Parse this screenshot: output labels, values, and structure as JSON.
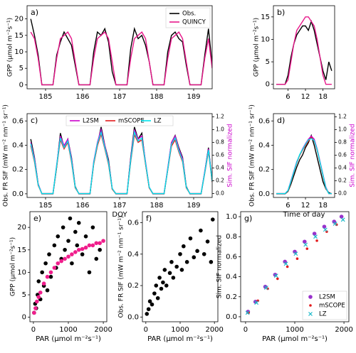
{
  "chart_data": [
    {
      "type": "line",
      "label": "a)",
      "ylabel": "GPP (µmol m⁻²s⁻¹)",
      "x": [
        184.6,
        184.7,
        184.8,
        184.9,
        185.0,
        185.1,
        185.2,
        185.3,
        185.4,
        185.5,
        185.6,
        185.7,
        185.8,
        185.9,
        186.0,
        186.1,
        186.2,
        186.3,
        186.4,
        186.5,
        186.6,
        186.7,
        186.8,
        186.9,
        187.0,
        187.1,
        187.2,
        187.3,
        187.4,
        187.5,
        187.6,
        187.7,
        187.8,
        187.9,
        188.0,
        188.1,
        188.2,
        188.3,
        188.4,
        188.5,
        188.6,
        188.7,
        188.8,
        188.9,
        189.0,
        189.1,
        189.2,
        189.3,
        189.4,
        189.5
      ],
      "series": [
        {
          "name": "Obs.",
          "color": "#000000",
          "values": [
            20,
            15,
            9,
            0,
            0,
            0,
            0,
            9,
            13,
            16,
            14,
            12,
            6,
            0,
            0,
            0,
            0,
            10,
            16,
            15,
            17,
            13,
            4,
            0,
            0,
            0,
            0,
            11,
            17,
            14,
            15,
            12,
            7,
            0,
            0,
            0,
            0,
            10,
            15,
            16,
            14,
            13,
            6,
            0,
            0,
            0,
            0,
            9,
            17,
            6
          ]
        },
        {
          "name": "QUINCY",
          "color": "#e8178a",
          "values": [
            16,
            14,
            8,
            0,
            0,
            0,
            0,
            8,
            14,
            15,
            16,
            14,
            7,
            0,
            0,
            0,
            0,
            8,
            14,
            15,
            16,
            14,
            7,
            0,
            0,
            0,
            0,
            8,
            14,
            15,
            16,
            14,
            7,
            0,
            0,
            0,
            0,
            8,
            14,
            15,
            16,
            14,
            7,
            0,
            0,
            0,
            0,
            8,
            14,
            5
          ]
        }
      ],
      "xlim": [
        184.5,
        189.5
      ],
      "xticks": [
        185,
        186,
        187,
        188,
        189
      ],
      "ylim": [
        -1.2,
        24
      ],
      "yticks": [
        0,
        5,
        10,
        15,
        20
      ],
      "legend": "upper right"
    },
    {
      "type": "line",
      "label": "b)",
      "ylabel": "GPP (µmol m⁻²s⁻¹)",
      "x": [
        2,
        3,
        4,
        5,
        6,
        7,
        8,
        9,
        10,
        11,
        12,
        13,
        14,
        15,
        16,
        17,
        18,
        19,
        20,
        21
      ],
      "series": [
        {
          "color": "#000000",
          "values": [
            0,
            0,
            0,
            0,
            2,
            6,
            9,
            11,
            12,
            13,
            13,
            12,
            14,
            12,
            9,
            6,
            3,
            1,
            5,
            3
          ]
        },
        {
          "color": "#e8178a",
          "values": [
            0,
            0,
            0,
            0,
            1,
            5,
            9,
            12,
            13,
            14,
            15,
            15,
            14,
            13,
            10,
            6,
            2,
            0,
            0,
            0
          ]
        }
      ],
      "xlim": [
        1,
        22
      ],
      "xticks": [
        6,
        12,
        18
      ],
      "ylim": [
        -1,
        17.5
      ],
      "yticks": [
        0,
        5,
        10,
        15
      ]
    },
    {
      "type": "line",
      "label": "c)",
      "ylabel": "Obs. FR SIF (mW m⁻² nm⁻¹ sr⁻¹)",
      "xlabel": "DOY",
      "y2label": "Sim. SIF normalized",
      "y2label_color": "#cc00cc",
      "x": [
        184.6,
        184.7,
        184.8,
        184.9,
        185.0,
        185.1,
        185.2,
        185.3,
        185.4,
        185.5,
        185.6,
        185.7,
        185.8,
        185.9,
        186.0,
        186.1,
        186.2,
        186.3,
        186.4,
        186.5,
        186.6,
        186.7,
        186.8,
        186.9,
        187.0,
        187.1,
        187.2,
        187.3,
        187.4,
        187.5,
        187.6,
        187.7,
        187.8,
        187.9,
        188.0,
        188.1,
        188.2,
        188.3,
        188.4,
        188.5,
        188.6,
        188.7,
        188.8,
        188.9,
        189.0,
        189.1,
        189.2,
        189.3,
        189.4,
        189.5
      ],
      "series": [
        {
          "color": "#000000",
          "values": [
            0.45,
            0.3,
            0.08,
            0,
            0,
            0,
            0,
            0.22,
            0.5,
            0.38,
            0.45,
            0.3,
            0.06,
            0,
            0,
            0,
            0,
            0.25,
            0.4,
            0.55,
            0.4,
            0.28,
            0.04,
            0,
            0,
            0,
            0,
            0.3,
            0.55,
            0.45,
            0.5,
            0.25,
            0.05,
            0,
            0,
            0,
            0,
            0.2,
            0.42,
            0.48,
            0.38,
            0.3,
            0.06,
            0,
            0,
            0,
            0,
            0.18,
            0.38,
            0.1
          ]
        },
        {
          "name": "L2SM",
          "color": "#cc00cc",
          "axis": "y2",
          "values": [
            0.8,
            0.55,
            0.15,
            0,
            0,
            0,
            0,
            0.45,
            0.9,
            0.75,
            0.85,
            0.55,
            0.1,
            0,
            0,
            0,
            0,
            0.5,
            0.8,
            1.0,
            0.75,
            0.5,
            0.08,
            0,
            0,
            0,
            0,
            0.55,
            1.0,
            0.85,
            0.9,
            0.5,
            0.1,
            0,
            0,
            0,
            0,
            0.4,
            0.8,
            0.9,
            0.7,
            0.55,
            0.1,
            0,
            0,
            0,
            0,
            0.35,
            0.7,
            0.2
          ]
        },
        {
          "name": "mSCOPE",
          "color": "#e31a1c",
          "axis": "y2",
          "values": [
            0.75,
            0.5,
            0.13,
            0,
            0,
            0,
            0,
            0.42,
            0.84,
            0.7,
            0.8,
            0.5,
            0.09,
            0,
            0,
            0,
            0,
            0.46,
            0.75,
            0.93,
            0.7,
            0.46,
            0.07,
            0,
            0,
            0,
            0,
            0.5,
            0.92,
            0.8,
            0.84,
            0.46,
            0.09,
            0,
            0,
            0,
            0,
            0.37,
            0.74,
            0.84,
            0.65,
            0.5,
            0.09,
            0,
            0,
            0,
            0,
            0.32,
            0.66,
            0.18
          ]
        },
        {
          "name": "LZ",
          "color": "#00e5ee",
          "axis": "y2",
          "values": [
            0.78,
            0.52,
            0.14,
            0,
            0,
            0,
            0,
            0.44,
            0.87,
            0.72,
            0.82,
            0.52,
            0.1,
            0,
            0,
            0,
            0,
            0.48,
            0.78,
            0.96,
            0.72,
            0.48,
            0.08,
            0,
            0,
            0,
            0,
            0.52,
            0.96,
            0.82,
            0.87,
            0.48,
            0.1,
            0,
            0,
            0,
            0,
            0.38,
            0.77,
            0.87,
            0.67,
            0.52,
            0.1,
            0,
            0,
            0,
            0,
            0.33,
            0.68,
            0.19
          ]
        }
      ],
      "xlim": [
        184.5,
        189.5
      ],
      "xticks": [
        185,
        186,
        187,
        188,
        189
      ],
      "ylim": [
        -0.03,
        0.66
      ],
      "yticks": [
        {
          "value": 0,
          "label": "0.0"
        },
        0.2,
        0.4,
        0.6
      ],
      "y2lim": [
        -0.06,
        1.25
      ],
      "y2ticks": [
        {
          "value": 0,
          "label": "0.0"
        },
        0.2,
        0.4,
        0.6,
        0.8,
        {
          "value": 1,
          "label": "1.0"
        },
        1.2
      ],
      "legend": "upper center"
    },
    {
      "type": "line",
      "label": "d)",
      "ylabel": "Obs. FR SIF (mW m⁻² nm⁻¹ sr⁻¹)",
      "xlabel": "Time of day",
      "y2label": "Sim. SIF normalized",
      "y2label_color": "#cc00cc",
      "x": [
        2,
        3,
        4,
        5,
        6,
        7,
        8,
        9,
        10,
        11,
        12,
        13,
        14,
        15,
        16,
        17,
        18,
        19,
        20,
        21
      ],
      "series": [
        {
          "color": "#000000",
          "values": [
            0,
            0,
            0,
            0,
            0.02,
            0.08,
            0.15,
            0.22,
            0.28,
            0.32,
            0.38,
            0.42,
            0.48,
            0.4,
            0.3,
            0.2,
            0.1,
            0.04,
            0.01,
            0
          ]
        },
        {
          "color": "#cc00cc",
          "axis": "y2",
          "values": [
            0,
            0,
            0,
            0,
            0.05,
            0.2,
            0.35,
            0.5,
            0.6,
            0.7,
            0.78,
            0.85,
            0.9,
            0.85,
            0.7,
            0.5,
            0.3,
            0.1,
            0,
            0
          ]
        },
        {
          "color": "#e31a1c",
          "axis": "y2",
          "values": [
            0,
            0,
            0,
            0,
            0.04,
            0.18,
            0.33,
            0.48,
            0.6,
            0.68,
            0.75,
            0.82,
            0.88,
            0.82,
            0.68,
            0.48,
            0.28,
            0.08,
            0,
            0
          ]
        },
        {
          "color": "#00e5ee",
          "axis": "y2",
          "values": [
            0,
            0,
            0,
            0,
            0.05,
            0.19,
            0.34,
            0.49,
            0.61,
            0.69,
            0.77,
            0.84,
            0.86,
            0.83,
            0.69,
            0.49,
            0.29,
            0.09,
            0,
            0
          ]
        }
      ],
      "xlim": [
        1,
        22
      ],
      "xticks": [
        6,
        12,
        18
      ],
      "ylim": [
        -0.03,
        0.66
      ],
      "yticks": [
        {
          "value": 0,
          "label": "0.0"
        },
        0.2,
        0.4,
        0.6
      ],
      "y2lim": [
        -0.06,
        1.25
      ],
      "y2ticks": [
        {
          "value": 0,
          "label": "0.0"
        },
        0.2,
        0.4,
        0.6,
        0.8,
        {
          "value": 1,
          "label": "1.0"
        },
        1.2
      ]
    },
    {
      "type": "scatter",
      "label": "e)",
      "ylabel": "GPP (µmol m⁻²s⁻¹)",
      "xlabel": "PAR (µmol m⁻²s⁻¹)",
      "series": [
        {
          "color": "#000000",
          "marker": "circle",
          "x": [
            20,
            50,
            80,
            120,
            150,
            200,
            250,
            300,
            350,
            400,
            450,
            500,
            600,
            650,
            700,
            800,
            850,
            900,
            1000,
            1050,
            1100,
            1200,
            1250,
            1300,
            1400,
            1500,
            1600,
            1700,
            1800,
            1900
          ],
          "values": [
            1,
            3,
            2,
            5,
            8,
            4,
            10,
            7,
            12,
            6,
            14,
            9,
            16,
            11,
            18,
            13,
            20,
            15,
            17,
            22,
            12,
            19,
            16,
            21,
            14,
            18,
            10,
            20,
            13,
            15
          ]
        },
        {
          "color": "#f01e8c",
          "marker": "circle",
          "x": [
            20,
            60,
            100,
            150,
            200,
            300,
            400,
            500,
            600,
            700,
            800,
            900,
            1000,
            1100,
            1200,
            1300,
            1400,
            1500,
            1600,
            1700,
            1800,
            1900,
            2000
          ],
          "values": [
            1,
            2,
            3.5,
            4.5,
            5.5,
            7.5,
            9,
            10,
            11,
            12,
            12.5,
            13,
            13.5,
            14,
            14.5,
            15,
            15.2,
            15.5,
            16,
            16,
            16.5,
            16.5,
            17
          ]
        }
      ],
      "xlim": [
        -100,
        2100
      ],
      "xticks": [
        0,
        1000,
        2000
      ],
      "ylim": [
        -1,
        23.5
      ],
      "yticks": [
        0,
        5,
        10,
        15,
        20
      ]
    },
    {
      "type": "scatter",
      "label": "f)",
      "ylabel": "Obs. FR SIF (mW m⁻² nm⁻¹ sr⁻¹)",
      "xlabel": "PAR (µmol m⁻²s⁻¹)",
      "series": [
        {
          "color": "#000000",
          "marker": "circle",
          "x": [
            30,
            80,
            120,
            180,
            250,
            300,
            350,
            400,
            450,
            500,
            550,
            600,
            700,
            750,
            800,
            900,
            1000,
            1050,
            1100,
            1200,
            1300,
            1400,
            1500,
            1600,
            1700,
            1800,
            1900,
            1950
          ],
          "values": [
            0.02,
            0.05,
            0.1,
            0.08,
            0.15,
            0.2,
            0.12,
            0.25,
            0.18,
            0.22,
            0.3,
            0.2,
            0.28,
            0.35,
            0.25,
            0.32,
            0.4,
            0.3,
            0.45,
            0.35,
            0.5,
            0.38,
            0.42,
            0.55,
            0.4,
            0.48,
            0.35,
            0.62
          ]
        }
      ],
      "xlim": [
        -100,
        2100
      ],
      "xticks": [
        0,
        1000,
        2000
      ],
      "ylim": [
        -0.03,
        0.67
      ],
      "yticks": [
        {
          "value": 0,
          "label": "0.0"
        },
        0.2,
        0.4,
        0.6
      ]
    },
    {
      "type": "scatter",
      "label": "g)",
      "ylabel": "Sim. SIF normalized",
      "xlabel": "PAR (µmol m⁻²s⁻¹)",
      "series": [
        {
          "name": "L2SM",
          "color": "#9932cc",
          "marker": "circle",
          "x": [
            50,
            200,
            400,
            600,
            800,
            1000,
            1200,
            1400,
            1600,
            1800,
            1950
          ],
          "values": [
            0.05,
            0.15,
            0.3,
            0.42,
            0.55,
            0.65,
            0.75,
            0.83,
            0.9,
            0.95,
            1.0
          ]
        },
        {
          "name": "mSCOPE",
          "color": "#e31a1c",
          "marker": "dot",
          "x": [
            60,
            250,
            450,
            650,
            850,
            1050,
            1250,
            1450,
            1650,
            1850
          ],
          "values": [
            0.04,
            0.16,
            0.28,
            0.38,
            0.5,
            0.58,
            0.68,
            0.76,
            0.85,
            0.92
          ]
        },
        {
          "name": "LZ",
          "color": "#17b8c8",
          "marker": "x",
          "x": [
            40,
            220,
            420,
            620,
            820,
            1020,
            1220,
            1420,
            1620,
            1820,
            1980
          ],
          "values": [
            0.04,
            0.14,
            0.29,
            0.41,
            0.53,
            0.63,
            0.72,
            0.8,
            0.87,
            0.93,
            0.97
          ]
        }
      ],
      "xlim": [
        -100,
        2100
      ],
      "xticks": [
        0,
        1000,
        2000
      ],
      "ylim": [
        -0.05,
        1.05
      ],
      "yticks": [
        {
          "value": 0,
          "label": "0.0"
        },
        0.2,
        0.4,
        0.6,
        0.8,
        {
          "value": 1,
          "label": "1.0"
        }
      ],
      "legend": "lower right"
    }
  ]
}
